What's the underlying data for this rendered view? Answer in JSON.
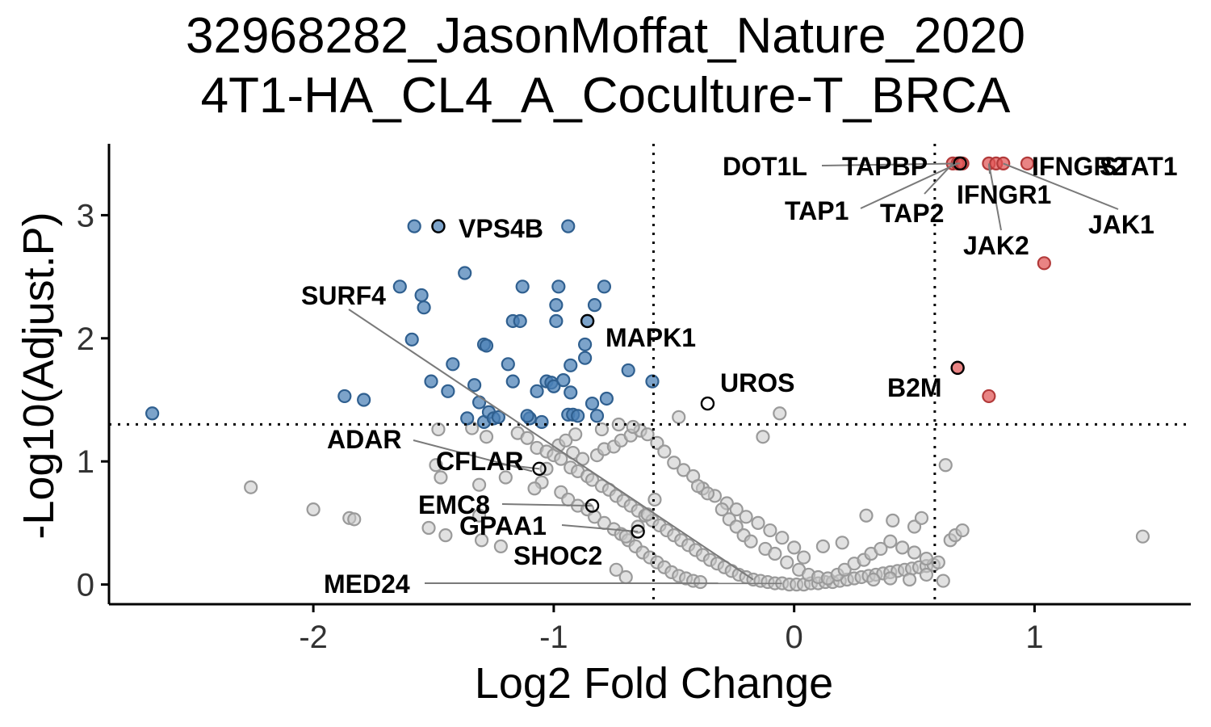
{
  "chart_data": {
    "type": "scatter",
    "title": "32968282_JasonMoffat_Nature_2020",
    "subtitle": "4T1-HA_CL4_A_Coculture-T_BRCA",
    "xlabel": "Log2 Fold Change",
    "ylabel": "-Log10(Adjust.P)",
    "xlim": [
      -2.85,
      1.65
    ],
    "ylim": [
      -0.16,
      3.58
    ],
    "xticks": [
      -2,
      -1,
      0,
      1
    ],
    "xtick_labels": [
      "-2",
      "-1",
      "0",
      "1"
    ],
    "yticks": [
      0,
      1,
      2,
      3
    ],
    "ytick_labels": [
      "0",
      "1",
      "2",
      "3"
    ],
    "thresholds": {
      "x": [
        -0.585,
        0.585
      ],
      "y": 1.301
    },
    "grid": false,
    "legend": "none",
    "colors": {
      "down": "#4a7fb5",
      "up": "#e05555",
      "ns": "#c8c8c8",
      "label_outline": "#000000"
    },
    "series": [
      {
        "group": "up",
        "points": [
          [
            0.66,
            3.42
          ],
          [
            0.68,
            3.42
          ],
          [
            0.7,
            3.42
          ],
          [
            0.81,
            3.42
          ],
          [
            0.84,
            3.42
          ],
          [
            0.87,
            3.42
          ],
          [
            0.97,
            3.42
          ],
          [
            1.04,
            2.61
          ],
          [
            0.68,
            1.76
          ],
          [
            0.81,
            1.53
          ]
        ]
      },
      {
        "group": "down",
        "points": [
          [
            -2.67,
            1.39
          ],
          [
            -1.87,
            1.53
          ],
          [
            -1.79,
            1.5
          ],
          [
            -1.58,
            2.91
          ],
          [
            -1.48,
            2.91
          ],
          [
            -0.94,
            2.91
          ],
          [
            -1.37,
            2.53
          ],
          [
            -1.64,
            2.42
          ],
          [
            -1.55,
            2.35
          ],
          [
            -1.54,
            2.25
          ],
          [
            -1.59,
            1.99
          ],
          [
            -1.51,
            1.65
          ],
          [
            -1.44,
            1.57
          ],
          [
            -1.42,
            1.79
          ],
          [
            -1.33,
            1.62
          ],
          [
            -1.31,
            1.48
          ],
          [
            -1.29,
            1.32
          ],
          [
            -1.27,
            1.4
          ],
          [
            -1.25,
            1.35
          ],
          [
            -1.23,
            1.36
          ],
          [
            -1.29,
            1.95
          ],
          [
            -1.28,
            1.94
          ],
          [
            -1.19,
            1.79
          ],
          [
            -1.17,
            2.14
          ],
          [
            -1.14,
            2.14
          ],
          [
            -1.13,
            2.42
          ],
          [
            -1.17,
            1.65
          ],
          [
            -1.07,
            1.57
          ],
          [
            -1.1,
            1.35
          ],
          [
            -1.05,
            1.32
          ],
          [
            -1.03,
            1.65
          ],
          [
            -1.01,
            1.64
          ],
          [
            -1.0,
            1.61
          ],
          [
            -0.98,
            2.42
          ],
          [
            -0.99,
            2.27
          ],
          [
            -0.99,
            2.14
          ],
          [
            -0.93,
            1.78
          ],
          [
            -0.93,
            1.56
          ],
          [
            -0.94,
            1.38
          ],
          [
            -0.92,
            1.38
          ],
          [
            -0.9,
            1.37
          ],
          [
            -0.87,
            1.95
          ],
          [
            -0.87,
            1.84
          ],
          [
            -0.84,
            1.47
          ],
          [
            -0.83,
            2.27
          ],
          [
            -0.82,
            1.37
          ],
          [
            -0.79,
            2.42
          ],
          [
            -0.78,
            1.51
          ],
          [
            -0.69,
            1.74
          ],
          [
            -0.59,
            1.65
          ],
          [
            -0.86,
            2.14
          ],
          [
            -1.36,
            1.35
          ],
          [
            -0.96,
            1.66
          ],
          [
            -1.11,
            1.37
          ]
        ]
      },
      {
        "group": "ns",
        "points": [
          [
            -2.26,
            0.79
          ],
          [
            -2.0,
            0.61
          ],
          [
            -1.85,
            0.54
          ],
          [
            -1.83,
            0.53
          ],
          [
            -1.49,
            0.97
          ],
          [
            -1.47,
            0.87
          ],
          [
            -1.52,
            0.46
          ],
          [
            -1.45,
            0.4
          ],
          [
            -1.31,
            0.81
          ],
          [
            -1.31,
            0.56
          ],
          [
            -1.3,
            0.36
          ],
          [
            -1.2,
            0.87
          ],
          [
            -1.22,
            0.31
          ],
          [
            -1.48,
            1.26
          ],
          [
            -1.34,
            1.27
          ],
          [
            -1.28,
            1.2
          ],
          [
            -1.15,
            1.23
          ],
          [
            -1.11,
            1.19
          ],
          [
            -1.07,
            1.11
          ],
          [
            -1.03,
            1.08
          ],
          [
            -1.0,
            1.05
          ],
          [
            -0.97,
            1.02
          ],
          [
            -0.93,
            0.95
          ],
          [
            -0.9,
            0.92
          ],
          [
            -0.86,
            0.88
          ],
          [
            -0.84,
            0.85
          ],
          [
            -0.8,
            0.8
          ],
          [
            -0.77,
            0.77
          ],
          [
            -0.74,
            0.72
          ],
          [
            -0.71,
            0.68
          ],
          [
            -0.68,
            0.64
          ],
          [
            -0.65,
            0.6
          ],
          [
            -0.62,
            0.56
          ],
          [
            -0.59,
            0.52
          ],
          [
            -0.56,
            0.48
          ],
          [
            -0.53,
            0.44
          ],
          [
            -0.5,
            0.4
          ],
          [
            -0.47,
            0.36
          ],
          [
            -0.44,
            0.32
          ],
          [
            -0.41,
            0.28
          ],
          [
            -0.38,
            0.24
          ],
          [
            -0.35,
            0.2
          ],
          [
            -0.32,
            0.17
          ],
          [
            -0.29,
            0.14
          ],
          [
            -0.26,
            0.11
          ],
          [
            -0.23,
            0.08
          ],
          [
            -0.2,
            0.06
          ],
          [
            -0.17,
            0.04
          ],
          [
            -0.14,
            0.03
          ],
          [
            -0.11,
            0.02
          ],
          [
            -0.08,
            0.01
          ],
          [
            -0.05,
            0.01
          ],
          [
            -0.02,
            0.0
          ],
          [
            0.01,
            0.0
          ],
          [
            0.04,
            0.0
          ],
          [
            0.07,
            0.01
          ],
          [
            0.1,
            0.01
          ],
          [
            0.13,
            0.02
          ],
          [
            0.16,
            0.02
          ],
          [
            0.19,
            0.03
          ],
          [
            0.22,
            0.04
          ],
          [
            0.25,
            0.05
          ],
          [
            0.28,
            0.06
          ],
          [
            0.31,
            0.07
          ],
          [
            0.34,
            0.08
          ],
          [
            0.37,
            0.09
          ],
          [
            0.4,
            0.1
          ],
          [
            0.43,
            0.11
          ],
          [
            0.46,
            0.12
          ],
          [
            0.49,
            0.13
          ],
          [
            0.52,
            0.14
          ],
          [
            0.55,
            0.15
          ],
          [
            0.58,
            0.16
          ],
          [
            0.62,
            0.03
          ],
          [
            -0.98,
            1.13
          ],
          [
            -0.92,
            1.07
          ],
          [
            -0.88,
            1.02
          ],
          [
            -0.82,
            1.05
          ],
          [
            -0.79,
            1.1
          ],
          [
            -0.75,
            1.12
          ],
          [
            -0.72,
            1.17
          ],
          [
            -0.68,
            1.21
          ],
          [
            -0.64,
            1.25
          ],
          [
            -0.61,
            1.22
          ],
          [
            -0.57,
            1.15
          ],
          [
            -0.54,
            1.08
          ],
          [
            -0.5,
            0.99
          ],
          [
            -0.46,
            0.93
          ],
          [
            -0.42,
            0.88
          ],
          [
            -0.38,
            0.78
          ],
          [
            -0.33,
            0.72
          ],
          [
            -0.28,
            0.66
          ],
          [
            -0.24,
            0.61
          ],
          [
            -0.2,
            0.55
          ],
          [
            -0.15,
            0.5
          ],
          [
            -0.1,
            0.44
          ],
          [
            -0.05,
            0.38
          ],
          [
            0.0,
            0.3
          ],
          [
            0.04,
            0.22
          ],
          [
            -0.48,
            1.36
          ],
          [
            -0.06,
            1.39
          ],
          [
            -0.13,
            1.2
          ],
          [
            -0.67,
            1.28
          ],
          [
            -0.73,
            1.3
          ],
          [
            -0.8,
            1.26
          ],
          [
            -0.91,
            1.22
          ],
          [
            -0.95,
            1.17
          ],
          [
            -1.03,
            0.94
          ],
          [
            -1.05,
            0.83
          ],
          [
            -1.08,
            0.78
          ],
          [
            -0.97,
            0.75
          ],
          [
            -0.94,
            0.69
          ],
          [
            -0.9,
            0.64
          ],
          [
            -0.86,
            0.61
          ],
          [
            -0.83,
            0.55
          ],
          [
            -0.79,
            0.5
          ],
          [
            -0.75,
            0.45
          ],
          [
            -0.72,
            0.41
          ],
          [
            -0.69,
            0.36
          ],
          [
            -0.66,
            0.31
          ],
          [
            -0.63,
            0.26
          ],
          [
            -0.6,
            0.22
          ],
          [
            -0.57,
            0.18
          ],
          [
            -0.54,
            0.14
          ],
          [
            -0.51,
            0.1
          ],
          [
            -0.48,
            0.07
          ],
          [
            -0.45,
            0.05
          ],
          [
            -0.42,
            0.03
          ],
          [
            -0.39,
            0.02
          ],
          [
            -0.58,
            0.69
          ],
          [
            -0.61,
            0.57
          ],
          [
            -0.65,
            0.47
          ],
          [
            -0.7,
            0.39
          ],
          [
            -0.74,
            0.12
          ],
          [
            -0.7,
            0.06
          ],
          [
            -0.4,
            0.8
          ],
          [
            -0.36,
            0.74
          ],
          [
            -0.3,
            0.61
          ],
          [
            -0.27,
            0.53
          ],
          [
            -0.24,
            0.47
          ],
          [
            -0.21,
            0.4
          ],
          [
            -0.18,
            0.35
          ],
          [
            -0.12,
            0.29
          ],
          [
            -0.08,
            0.25
          ],
          [
            -0.03,
            0.18
          ],
          [
            0.02,
            0.12
          ],
          [
            0.06,
            0.08
          ],
          [
            0.1,
            0.06
          ],
          [
            0.14,
            0.05
          ],
          [
            0.18,
            0.08
          ],
          [
            0.21,
            0.12
          ],
          [
            0.25,
            0.17
          ],
          [
            0.29,
            0.2
          ],
          [
            0.32,
            0.25
          ],
          [
            0.36,
            0.29
          ],
          [
            0.4,
            0.35
          ],
          [
            0.45,
            0.3
          ],
          [
            0.5,
            0.26
          ],
          [
            0.55,
            0.21
          ],
          [
            0.6,
            0.18
          ],
          [
            0.65,
            0.36
          ],
          [
            0.67,
            0.4
          ],
          [
            0.7,
            0.44
          ],
          [
            0.63,
            0.97
          ],
          [
            0.3,
            0.56
          ],
          [
            0.41,
            0.52
          ],
          [
            0.5,
            0.47
          ],
          [
            0.53,
            0.54
          ],
          [
            0.2,
            0.34
          ],
          [
            0.12,
            0.31
          ],
          [
            1.45,
            0.39
          ],
          [
            0.55,
            0.08
          ],
          [
            0.48,
            0.04
          ],
          [
            0.4,
            0.05
          ],
          [
            0.33,
            0.04
          ]
        ]
      }
    ],
    "labels": [
      {
        "gene": "DOT1L",
        "x": 0.69,
        "y": 3.42
      },
      {
        "gene": "TAPBP",
        "x": 0.7,
        "y": 3.42
      },
      {
        "gene": "IFNGR2",
        "x": 0.97,
        "y": 3.42
      },
      {
        "gene": "STAT1",
        "x": 0.84,
        "y": 3.42
      },
      {
        "gene": "TAP1",
        "x": 0.68,
        "y": 3.42
      },
      {
        "gene": "TAP2",
        "x": 0.66,
        "y": 3.42
      },
      {
        "gene": "IFNGR1",
        "x": 0.81,
        "y": 3.42
      },
      {
        "gene": "JAK1",
        "x": 0.87,
        "y": 3.42
      },
      {
        "gene": "JAK2",
        "x": 0.81,
        "y": 3.42
      },
      {
        "gene": "VPS4B",
        "x": -1.48,
        "y": 2.91
      },
      {
        "gene": "SURF4",
        "x": -0.17,
        "y": 0.04
      },
      {
        "gene": "MAPK1",
        "x": -0.86,
        "y": 2.14
      },
      {
        "gene": "UROS",
        "x": -0.36,
        "y": 1.47
      },
      {
        "gene": "B2M",
        "x": 0.68,
        "y": 1.76
      },
      {
        "gene": "ADAR",
        "x": -1.09,
        "y": 0.92
      },
      {
        "gene": "CFLAR",
        "x": -1.06,
        "y": 0.94
      },
      {
        "gene": "EMC8",
        "x": -0.84,
        "y": 0.64
      },
      {
        "gene": "GPAA1",
        "x": -0.65,
        "y": 0.43
      },
      {
        "gene": "SHOC2",
        "x": -0.65,
        "y": 0.43
      },
      {
        "gene": "MED24",
        "x": -0.05,
        "y": 0.01
      }
    ]
  }
}
